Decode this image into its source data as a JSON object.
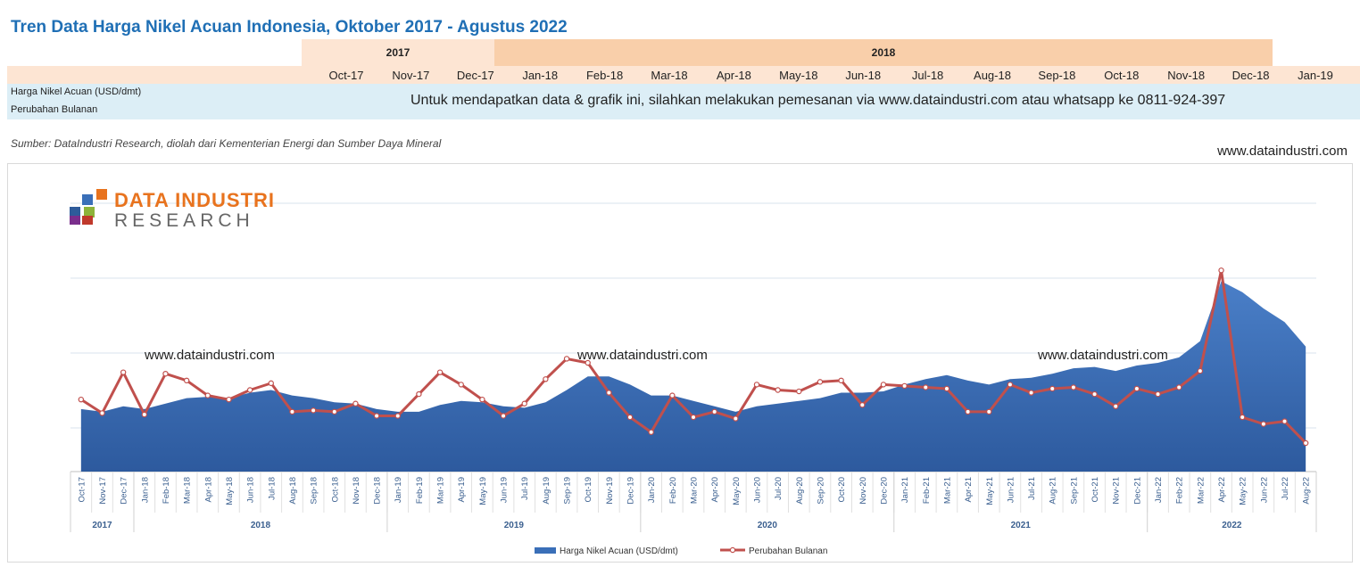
{
  "title": "Tren Data Harga Nikel Acuan Indonesia, Oktober 2017 - Agustus 2022",
  "header_table": {
    "years": [
      "2017",
      "2018"
    ],
    "months": [
      "Oct-17",
      "Nov-17",
      "Dec-17",
      "Jan-18",
      "Feb-18",
      "Mar-18",
      "Apr-18",
      "May-18",
      "Jun-18",
      "Jul-18",
      "Aug-18",
      "Sep-18",
      "Oct-18",
      "Nov-18",
      "Dec-18",
      "Jan-19"
    ],
    "row_labels": [
      "Harga Nikel Acuan (USD/dmt)",
      "Perubahan Bulanan"
    ],
    "notice": "Untuk mendapatkan data & grafik ini, silahkan melakukan pemesanan via www.dataindustri.com atau whatsapp ke 0811-924-397"
  },
  "source": "Sumber: DataIndustri Research, diolah dari Kementerian Energi dan Sumber Daya Mineral",
  "site_label": "www.dataindustri.com",
  "logo": {
    "line1": "DATA INDUSTRI",
    "line2": "RESEARCH"
  },
  "watermarks": [
    "www.dataindustri.com",
    "www.dataindustri.com",
    "www.dataindustri.com"
  ],
  "colors": {
    "area": "#3A6FB8",
    "line": "#C0504D",
    "title": "#1F6FB5",
    "logo_orange": "#E8731E"
  },
  "chart_data": {
    "type": "area",
    "title": "Tren Data Harga Nikel Acuan Indonesia, Oktober 2017 - Agustus 2022",
    "ylim": [
      0,
      100
    ],
    "x": [
      "Oct-17",
      "Nov-17",
      "Dec-17",
      "Jan-18",
      "Feb-18",
      "Mar-18",
      "Apr-18",
      "May-18",
      "Jun-18",
      "Jul-18",
      "Aug-18",
      "Sep-18",
      "Oct-18",
      "Nov-18",
      "Dec-18",
      "Jan-19",
      "Feb-19",
      "Mar-19",
      "Apr-19",
      "May-19",
      "Jun-19",
      "Jul-19",
      "Aug-19",
      "Sep-19",
      "Oct-19",
      "Nov-19",
      "Dec-19",
      "Jan-20",
      "Feb-20",
      "Mar-20",
      "Apr-20",
      "May-20",
      "Jun-20",
      "Jul-20",
      "Aug-20",
      "Sep-20",
      "Oct-20",
      "Nov-20",
      "Dec-20",
      "Jan-21",
      "Feb-21",
      "Mar-21",
      "Apr-21",
      "May-21",
      "Jun-21",
      "Jul-21",
      "Aug-21",
      "Sep-21",
      "Oct-21",
      "Nov-21",
      "Dec-21",
      "Jan-22",
      "Feb-22",
      "Mar-22",
      "Apr-22",
      "May-22",
      "Jun-22",
      "Jul-22",
      "Aug-22"
    ],
    "year_groups": [
      {
        "label": "2017",
        "count": 3
      },
      {
        "label": "2018",
        "count": 12
      },
      {
        "label": "2019",
        "count": 12
      },
      {
        "label": "2020",
        "count": 12
      },
      {
        "label": "2021",
        "count": 12
      },
      {
        "label": "2022",
        "count": 8
      }
    ],
    "series": [
      {
        "name": "Harga Nikel Acuan (USD/dmt)",
        "kind": "area",
        "values": [
          23,
          22,
          24,
          23,
          25,
          27,
          27.5,
          27,
          29,
          30,
          28,
          27,
          25.5,
          25,
          23,
          22,
          22,
          24.5,
          26,
          25.5,
          24,
          23.5,
          25.5,
          30,
          35,
          35,
          32,
          28,
          28,
          26,
          24,
          22,
          24,
          25,
          26,
          27,
          29,
          29,
          29.5,
          32,
          34,
          35.5,
          33.5,
          32,
          34,
          34.5,
          36,
          38,
          38.5,
          37,
          39,
          40,
          42,
          48,
          70,
          66,
          60,
          55,
          46
        ]
      },
      {
        "name": "Perubahan Bulanan",
        "kind": "line",
        "values": [
          26.5,
          21.5,
          36.5,
          21,
          36,
          33.5,
          28,
          26.5,
          30,
          32.5,
          22,
          22.5,
          22,
          25,
          20.5,
          20.5,
          28.5,
          36.5,
          32,
          26.5,
          20.5,
          25,
          34,
          41.5,
          40,
          29,
          20,
          14.5,
          28,
          20,
          22,
          19.5,
          32,
          30,
          29.5,
          33,
          33.5,
          24.5,
          32,
          31.5,
          31,
          30.5,
          22,
          22,
          32,
          29,
          30.5,
          31,
          28.5,
          24,
          30.5,
          28.5,
          31,
          37,
          74,
          20,
          17.5,
          18.5,
          10.5
        ]
      }
    ],
    "legend": [
      "Harga Nikel Acuan (USD/dmt)",
      "Perubahan Bulanan"
    ],
    "grid": true
  }
}
